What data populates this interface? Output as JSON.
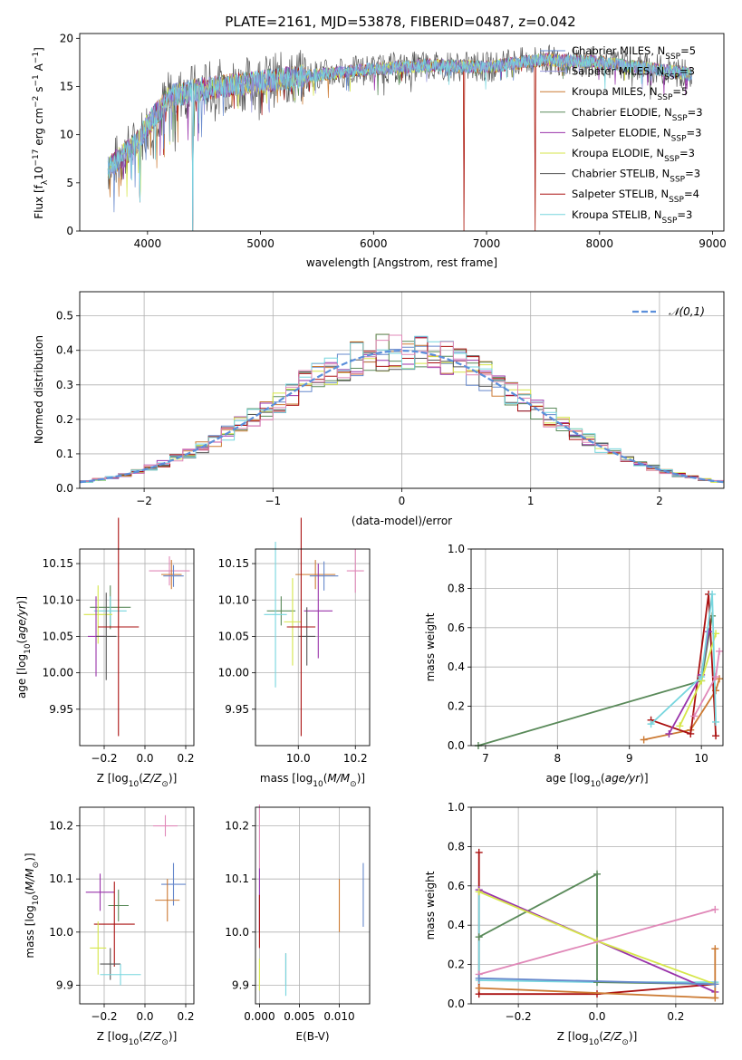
{
  "figure": {
    "title": "PLATE=2161, MJD=53878, FIBERID=0487, z=0.042"
  },
  "colors": {
    "chabrier_miles": "#6688cc",
    "salpeter_miles": "#9999dd",
    "kroupa_miles": "#cc7a33",
    "chabrier_elodie": "#5a8a5a",
    "salpeter_elodie": "#9933aa",
    "kroupa_elodie": "#d6e64a",
    "chabrier_stelib": "#555555",
    "salpeter_stelib": "#aa1111",
    "kroupa_stelib": "#77d6de",
    "pink": "#e088b8",
    "normal": "#5b8fdb"
  },
  "chart_data": [
    {
      "id": "spectrum",
      "type": "line",
      "xlabel": "wavelength [Angstrom, rest frame]",
      "ylabel": "Flux [f_λ 10^-17 erg cm^-2 s^-1 A^-1]",
      "xlim": [
        3400,
        9100
      ],
      "ylim": [
        0,
        20.5
      ],
      "xticks": [
        4000,
        5000,
        6000,
        7000,
        8000,
        9000
      ],
      "yticks": [
        0,
        5,
        10,
        15,
        20
      ],
      "legend": [
        {
          "label": "Chabrier MILES, N_SSP=5",
          "color": "chabrier_miles"
        },
        {
          "label": "Salpeter MILES, N_SSP=3",
          "color": "salpeter_miles"
        },
        {
          "label": "Kroupa MILES, N_SSP=5",
          "color": "kroupa_miles"
        },
        {
          "label": "Chabrier ELODIE, N_SSP=3",
          "color": "chabrier_elodie"
        },
        {
          "label": "Salpeter ELODIE, N_SSP=3",
          "color": "salpeter_elodie"
        },
        {
          "label": "Kroupa ELODIE, N_SSP=3",
          "color": "kroupa_elodie"
        },
        {
          "label": "Chabrier STELIB, N_SSP=3",
          "color": "chabrier_stelib"
        },
        {
          "label": "Salpeter STELIB, N_SSP=4",
          "color": "salpeter_stelib"
        },
        {
          "label": "Kroupa STELIB, N_SSP=3",
          "color": "kroupa_stelib"
        }
      ],
      "continuum": {
        "x": [
          3650,
          3900,
          4000,
          4200,
          4500,
          5000,
          5500,
          6000,
          6500,
          7000,
          7500,
          8000,
          8500,
          8800
        ],
        "y": [
          6.5,
          9.0,
          11.0,
          14.0,
          14.8,
          15.5,
          16.2,
          16.8,
          17.2,
          17.0,
          17.8,
          17.5,
          16.8,
          16.3
        ]
      },
      "dips": [
        {
          "x": 3933,
          "y": 3
        },
        {
          "x": 4400,
          "y": 0
        },
        {
          "x": 6800,
          "y": 0
        },
        {
          "x": 7430,
          "y": 0
        }
      ]
    },
    {
      "id": "residuals",
      "type": "step-histogram",
      "xlabel": "(data-model)/error",
      "ylabel": "Normed distribution",
      "xlim": [
        -2.5,
        2.5
      ],
      "ylim": [
        0,
        0.57
      ],
      "xticks": [
        -2,
        -1,
        0,
        1,
        2
      ],
      "yticks": [
        0.0,
        0.1,
        0.2,
        0.3,
        0.4,
        0.5
      ],
      "legend": "𝒩(0,1)",
      "bin_width": 0.1
    },
    {
      "id": "age_vs_Z",
      "type": "errorbar",
      "xlabel": "Z [log10(Z/Z⊙)]",
      "ylabel": "age [log10(age/yr)]",
      "xlim": [
        -0.32,
        0.24
      ],
      "ylim": [
        9.9,
        10.17
      ],
      "xticks": [
        -0.2,
        0.0,
        0.2
      ],
      "yticks": [
        9.95,
        10.0,
        10.05,
        10.1,
        10.15
      ],
      "points": [
        {
          "x": 0.12,
          "xerr": 0.1,
          "y": 10.14,
          "yerr": 0.02,
          "color": "pink"
        },
        {
          "x": 0.13,
          "xerr": 0.05,
          "y": 10.135,
          "yerr": 0.02,
          "color": "kroupa_miles"
        },
        {
          "x": 0.14,
          "xerr": 0.05,
          "y": 10.133,
          "yerr": 0.015,
          "color": "chabrier_miles"
        },
        {
          "x": -0.17,
          "xerr": 0.1,
          "y": 10.09,
          "yerr": 0.03,
          "color": "chabrier_elodie"
        },
        {
          "x": -0.17,
          "xerr": 0.08,
          "y": 10.085,
          "yerr": 0.02,
          "color": "kroupa_stelib"
        },
        {
          "x": -0.23,
          "xerr": 0.07,
          "y": 10.08,
          "yerr": 0.04,
          "color": "kroupa_elodie"
        },
        {
          "x": -0.24,
          "xerr": 0.04,
          "y": 10.05,
          "yerr": 0.055,
          "color": "salpeter_elodie"
        },
        {
          "x": -0.19,
          "xerr": 0.05,
          "y": 10.05,
          "yerr": 0.06,
          "color": "chabrier_stelib"
        },
        {
          "x": -0.13,
          "xerr": 0.1,
          "y": 10.063,
          "yerr": 0.15,
          "color": "salpeter_stelib"
        }
      ]
    },
    {
      "id": "age_vs_mass",
      "type": "errorbar",
      "xlabel": "mass [log10(M/M⊙)]",
      "ylabel": "",
      "xlim": [
        9.85,
        10.25
      ],
      "ylim": [
        9.9,
        10.17
      ],
      "xticks": [
        10.0,
        10.2
      ],
      "yticks": [
        9.95,
        10.0,
        10.05,
        10.1,
        10.15
      ],
      "points": [
        {
          "x": 10.2,
          "xerr": 0.03,
          "y": 10.14,
          "yerr": 0.03,
          "color": "pink"
        },
        {
          "x": 10.06,
          "xerr": 0.07,
          "y": 10.135,
          "yerr": 0.02,
          "color": "kroupa_miles"
        },
        {
          "x": 10.09,
          "xerr": 0.05,
          "y": 10.133,
          "yerr": 0.02,
          "color": "chabrier_miles"
        },
        {
          "x": 9.94,
          "xerr": 0.05,
          "y": 10.085,
          "yerr": 0.02,
          "color": "chabrier_elodie"
        },
        {
          "x": 9.92,
          "xerr": 0.04,
          "y": 10.08,
          "yerr": 0.1,
          "color": "kroupa_stelib"
        },
        {
          "x": 9.98,
          "xerr": 0.03,
          "y": 10.07,
          "yerr": 0.06,
          "color": "kroupa_elodie"
        },
        {
          "x": 10.07,
          "xerr": 0.05,
          "y": 10.085,
          "yerr": 0.065,
          "color": "salpeter_elodie"
        },
        {
          "x": 10.03,
          "xerr": 0.03,
          "y": 10.05,
          "yerr": 0.04,
          "color": "chabrier_stelib"
        },
        {
          "x": 10.01,
          "xerr": 0.05,
          "y": 10.063,
          "yerr": 0.15,
          "color": "salpeter_stelib"
        }
      ]
    },
    {
      "id": "weight_vs_age",
      "type": "line",
      "xlabel": "age [log10(age/yr)]",
      "ylabel": "mass weight",
      "xlim": [
        6.8,
        10.3
      ],
      "ylim": [
        0,
        1.0
      ],
      "xticks": [
        7,
        8,
        9,
        10
      ],
      "yticks": [
        0.0,
        0.2,
        0.4,
        0.6,
        0.8,
        1.0
      ],
      "series": [
        {
          "color": "chabrier_elodie",
          "x": [
            6.9,
            10.0,
            10.15
          ],
          "y": [
            0.0,
            0.33,
            0.66
          ]
        },
        {
          "color": "kroupa_miles",
          "x": [
            9.2,
            9.85,
            10.2,
            10.25
          ],
          "y": [
            0.03,
            0.08,
            0.28,
            0.34
          ]
        },
        {
          "color": "salpeter_stelib",
          "x": [
            9.3,
            9.85,
            10.1,
            10.2
          ],
          "y": [
            0.13,
            0.06,
            0.77,
            0.05
          ]
        },
        {
          "color": "salpeter_elodie",
          "x": [
            9.55,
            10.0,
            10.1
          ],
          "y": [
            0.06,
            0.36,
            0.58
          ]
        },
        {
          "color": "kroupa_elodie",
          "x": [
            9.7,
            10.0,
            10.2
          ],
          "y": [
            0.1,
            0.33,
            0.57
          ]
        },
        {
          "color": "kroupa_stelib",
          "x": [
            9.3,
            10.0,
            10.15,
            10.2
          ],
          "y": [
            0.11,
            0.35,
            0.77,
            0.12
          ]
        },
        {
          "color": "pink",
          "x": [
            9.9,
            10.2,
            10.25
          ],
          "y": [
            0.15,
            0.35,
            0.48
          ]
        }
      ]
    },
    {
      "id": "mass_vs_Z",
      "type": "errorbar",
      "xlabel": "Z [log10(Z/Z⊙)]",
      "ylabel": "mass [log10(M/M⊙)]",
      "xlim": [
        -0.32,
        0.24
      ],
      "ylim": [
        9.865,
        10.235
      ],
      "xticks": [
        -0.2,
        0.0,
        0.2
      ],
      "yticks": [
        9.9,
        10.0,
        10.1,
        10.2
      ],
      "points": [
        {
          "x": 0.1,
          "xerr": 0.06,
          "y": 10.2,
          "yerr": 0.02,
          "color": "pink"
        },
        {
          "x": 0.14,
          "xerr": 0.06,
          "y": 10.09,
          "yerr": 0.04,
          "color": "chabrier_miles"
        },
        {
          "x": 0.11,
          "xerr": 0.06,
          "y": 10.06,
          "yerr": 0.04,
          "color": "kroupa_miles"
        },
        {
          "x": -0.22,
          "xerr": 0.07,
          "y": 10.075,
          "yerr": 0.035,
          "color": "salpeter_elodie"
        },
        {
          "x": -0.13,
          "xerr": 0.05,
          "y": 10.05,
          "yerr": 0.03,
          "color": "chabrier_elodie"
        },
        {
          "x": -0.15,
          "xerr": 0.1,
          "y": 10.015,
          "yerr": 0.08,
          "color": "salpeter_stelib"
        },
        {
          "x": -0.23,
          "xerr": 0.04,
          "y": 9.97,
          "yerr": 0.05,
          "color": "kroupa_elodie"
        },
        {
          "x": -0.17,
          "xerr": 0.05,
          "y": 9.94,
          "yerr": 0.03,
          "color": "chabrier_stelib"
        },
        {
          "x": -0.12,
          "xerr": 0.1,
          "y": 9.92,
          "yerr": 0.02,
          "color": "kroupa_stelib"
        }
      ]
    },
    {
      "id": "mass_vs_ebv",
      "type": "errorbar",
      "xlabel": "E(B-V)",
      "ylabel": "",
      "xlim": [
        -0.0005,
        0.0138
      ],
      "ylim": [
        9.865,
        10.235
      ],
      "xticks": [
        0.0,
        0.005,
        0.01
      ],
      "xticklabels": [
        "0.000",
        "0.005",
        "0.010"
      ],
      "yticks": [
        9.9,
        10.0,
        10.1,
        10.2
      ],
      "points": [
        {
          "x": 0.0,
          "y": 10.18,
          "yerr": 0.06,
          "color": "pink"
        },
        {
          "x": 0.0,
          "y": 10.06,
          "yerr": 0.06,
          "color": "salpeter_elodie"
        },
        {
          "x": 0.0,
          "y": 10.02,
          "yerr": 0.05,
          "color": "salpeter_stelib"
        },
        {
          "x": 0.0,
          "y": 9.92,
          "yerr": 0.03,
          "color": "kroupa_elodie"
        },
        {
          "x": 0.0033,
          "y": 9.93,
          "yerr": 0.03,
          "color": "chabrier_stelib"
        },
        {
          "x": 0.0033,
          "y": 9.92,
          "yerr": 0.04,
          "color": "kroupa_stelib"
        },
        {
          "x": 0.01,
          "y": 10.05,
          "yerr": 0.05,
          "color": "kroupa_miles"
        },
        {
          "x": 0.013,
          "y": 10.07,
          "yerr": 0.06,
          "color": "chabrier_miles"
        }
      ]
    },
    {
      "id": "weight_vs_Z",
      "type": "line",
      "xlabel": "Z [log10(Z/Z⊙)]",
      "ylabel": "mass weight",
      "xlim": [
        -0.32,
        0.32
      ],
      "ylim": [
        0,
        1.0
      ],
      "xticks": [
        -0.2,
        0.0,
        0.2
      ],
      "yticks": [
        0.0,
        0.2,
        0.4,
        0.6,
        0.8,
        1.0
      ],
      "series": [
        {
          "color": "salpeter_stelib",
          "x": [
            -0.3,
            -0.3,
            0.0,
            0.3
          ],
          "y": [
            0.77,
            0.05,
            0.05,
            0.1
          ]
        },
        {
          "color": "kroupa_stelib",
          "x": [
            -0.3,
            -0.3,
            0.0,
            0.3
          ],
          "y": [
            0.58,
            0.12,
            0.11,
            0.11
          ]
        },
        {
          "color": "chabrier_elodie",
          "x": [
            -0.3,
            0.0,
            0.0,
            0.3
          ],
          "y": [
            0.34,
            0.66,
            0.11,
            0.1
          ]
        },
        {
          "color": "salpeter_elodie",
          "x": [
            -0.3,
            0.0,
            0.3
          ],
          "y": [
            0.58,
            0.32,
            0.06
          ]
        },
        {
          "color": "kroupa_elodie",
          "x": [
            -0.3,
            0.0,
            0.3
          ],
          "y": [
            0.57,
            0.32,
            0.1
          ]
        },
        {
          "color": "pink",
          "x": [
            -0.3,
            0.3
          ],
          "y": [
            0.15,
            0.48
          ]
        },
        {
          "color": "kroupa_miles",
          "x": [
            -0.3,
            0.3,
            0.3
          ],
          "y": [
            0.08,
            0.03,
            0.28
          ]
        },
        {
          "color": "chabrier_miles",
          "x": [
            -0.3,
            0.3
          ],
          "y": [
            0.13,
            0.1
          ]
        }
      ]
    }
  ]
}
